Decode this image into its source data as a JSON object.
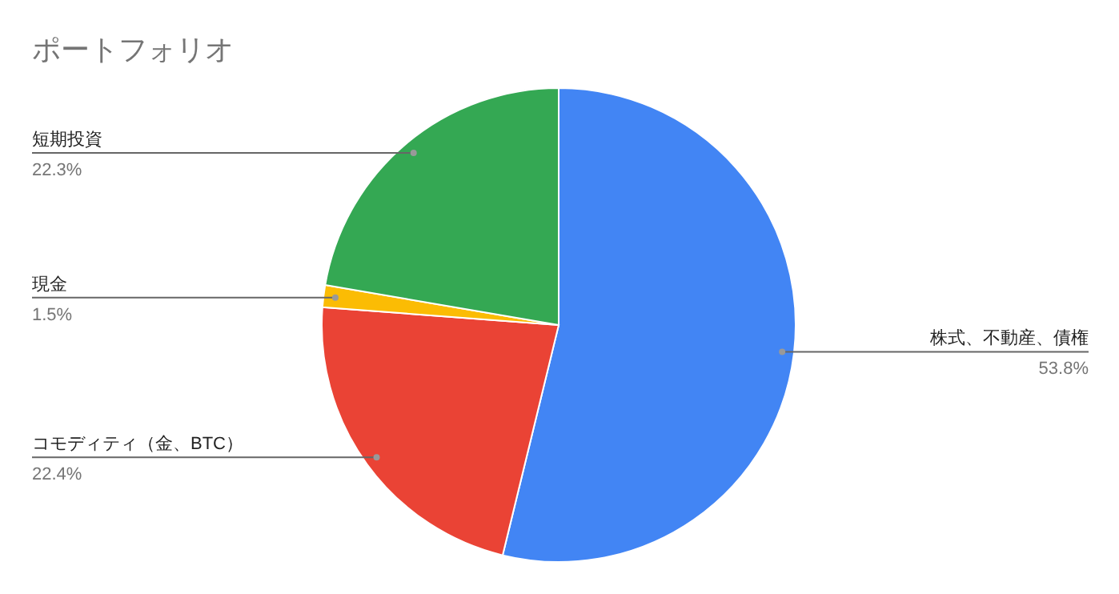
{
  "chart_data": {
    "type": "pie",
    "title": "ポートフォリオ",
    "categories": [
      "株式、不動産、債権",
      "コモディティ（金、BTC）",
      "現金",
      "短期投資"
    ],
    "values": [
      53.8,
      22.4,
      1.5,
      22.3
    ],
    "colors": [
      "#4285f4",
      "#ea4335",
      "#fbbc04",
      "#34a853"
    ],
    "value_labels": [
      "53.8%",
      "22.4%",
      "1.5%",
      "22.3%"
    ]
  }
}
